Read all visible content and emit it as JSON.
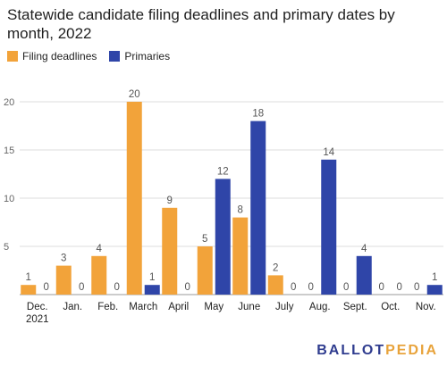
{
  "chart_data": {
    "type": "bar",
    "title": "Statewide candidate filing deadlines and primary dates by month, 2022",
    "categories": [
      [
        "Dec.",
        "2021"
      ],
      [
        "Jan."
      ],
      [
        "Feb."
      ],
      [
        "March"
      ],
      [
        "April"
      ],
      [
        "May"
      ],
      [
        "June"
      ],
      [
        "July"
      ],
      [
        "Aug."
      ],
      [
        "Sept."
      ],
      [
        "Oct."
      ],
      [
        "Nov."
      ]
    ],
    "series": [
      {
        "name": "Filing deadlines",
        "color": "#f2a33a",
        "values": [
          1,
          3,
          4,
          20,
          9,
          5,
          8,
          2,
          0,
          0,
          0,
          0
        ]
      },
      {
        "name": "Primaries",
        "color": "#2f45a8",
        "values": [
          0,
          0,
          0,
          1,
          0,
          12,
          18,
          0,
          14,
          4,
          0,
          1
        ]
      }
    ],
    "yticks": [
      5,
      10,
      15,
      20
    ],
    "ylim": [
      0,
      20
    ],
    "grid": true,
    "legend": "top-left"
  },
  "brand": {
    "part1": "BALLOT",
    "part2": "PEDIA"
  }
}
